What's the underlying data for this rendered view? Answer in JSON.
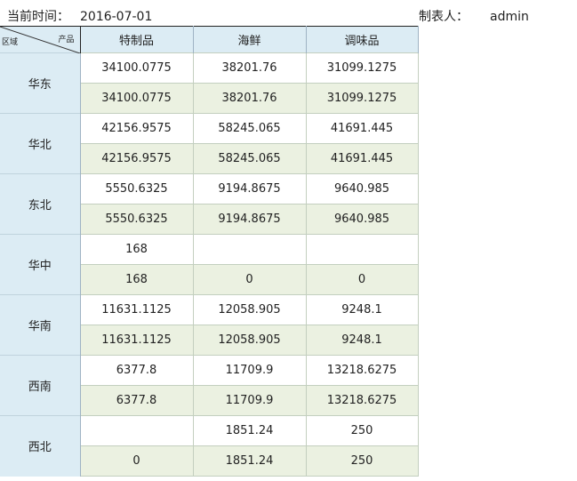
{
  "header": {
    "time_label": "当前时间：",
    "time_value": "2016-07-01",
    "maker_label": "制表人：",
    "maker_value": "admin"
  },
  "table": {
    "corner_top_label": "产品",
    "corner_bottom_label": "区域",
    "columns": [
      "特制品",
      "海鲜",
      "调味品"
    ],
    "regions": [
      {
        "name": "华东",
        "rows": [
          [
            "34100.0775",
            "38201.76",
            "31099.1275"
          ],
          [
            "34100.0775",
            "38201.76",
            "31099.1275"
          ]
        ]
      },
      {
        "name": "华北",
        "rows": [
          [
            "42156.9575",
            "58245.065",
            "41691.445"
          ],
          [
            "42156.9575",
            "58245.065",
            "41691.445"
          ]
        ]
      },
      {
        "name": "东北",
        "rows": [
          [
            "5550.6325",
            "9194.8675",
            "9640.985"
          ],
          [
            "5550.6325",
            "9194.8675",
            "9640.985"
          ]
        ]
      },
      {
        "name": "华中",
        "rows": [
          [
            "168",
            "",
            ""
          ],
          [
            "168",
            "0",
            "0"
          ]
        ]
      },
      {
        "name": "华南",
        "rows": [
          [
            "11631.1125",
            "12058.905",
            "9248.1"
          ],
          [
            "11631.1125",
            "12058.905",
            "9248.1"
          ]
        ]
      },
      {
        "name": "西南",
        "rows": [
          [
            "6377.8",
            "11709.9",
            "13218.6275"
          ],
          [
            "6377.8",
            "11709.9",
            "13218.6275"
          ]
        ]
      },
      {
        "name": "西北",
        "rows": [
          [
            "",
            "1851.24",
            "250"
          ],
          [
            "0",
            "1851.24",
            "250"
          ]
        ]
      }
    ]
  },
  "colors": {
    "header_bg": "#dcecf4",
    "alt_row_bg": "#ebf1e1",
    "cell_border": "#c3cfbf"
  }
}
